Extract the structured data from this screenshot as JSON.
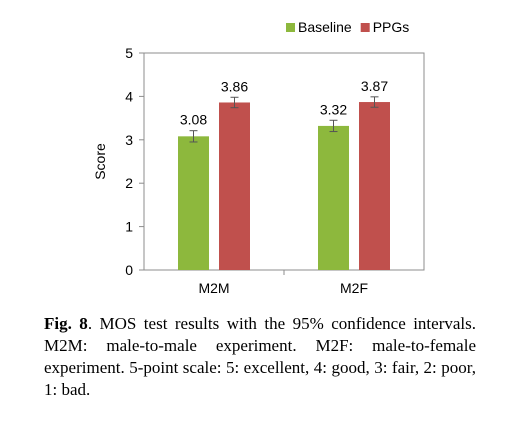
{
  "chart_data": {
    "type": "bar",
    "categories": [
      "M2M",
      "M2F"
    ],
    "series": [
      {
        "name": "Baseline",
        "values": [
          3.08,
          3.32
        ],
        "ci": [
          0.13,
          0.13
        ],
        "color": "#8db83d"
      },
      {
        "name": "PPGs",
        "values": [
          3.86,
          3.87
        ],
        "ci": [
          0.12,
          0.12
        ],
        "color": "#c0504d"
      }
    ],
    "data_labels": [
      [
        "3.08",
        "3.32"
      ],
      [
        "3.86",
        "3.87"
      ]
    ],
    "ylabel": "Score",
    "ylim": [
      0,
      5
    ],
    "yticks": [
      "0",
      "1",
      "2",
      "3",
      "4",
      "5"
    ],
    "grid": false,
    "legend": "top-right",
    "error_bars": true
  },
  "caption": {
    "fig": "Fig. 8",
    "text": ". MOS test results with the 95% confidence intervals. M2M: male-to-male experiment.  M2F: male-to-female experiment. 5-point scale: 5: excellent, 4: good, 3: fair, 2: poor, 1: bad."
  }
}
